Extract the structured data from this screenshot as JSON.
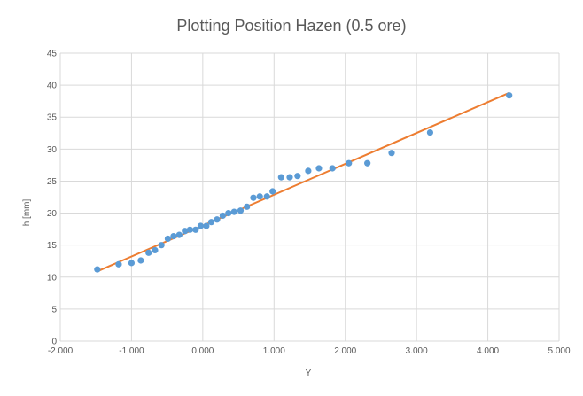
{
  "chart_data": {
    "type": "scatter",
    "title": "Plotting Position Hazen (0.5 ore)",
    "xlabel": "Y",
    "ylabel": "h [mm]",
    "xlim": [
      -2.0,
      5.0
    ],
    "ylim": [
      0,
      45
    ],
    "x_ticks": [
      "-2.000",
      "-1.000",
      "0.000",
      "1.000",
      "2.000",
      "3.000",
      "4.000",
      "5.000"
    ],
    "y_ticks": [
      "0",
      "5",
      "10",
      "15",
      "20",
      "25",
      "30",
      "35",
      "40",
      "45"
    ],
    "grid": true,
    "legend": "none",
    "colors": {
      "points": "#5b9bd5",
      "trend": "#ed7d31",
      "grid": "#d9d9d9",
      "text": "#595959"
    },
    "series": [
      {
        "kind": "scatter",
        "points": [
          [
            -1.48,
            11.2
          ],
          [
            -1.18,
            12.0
          ],
          [
            -1.0,
            12.2
          ],
          [
            -0.87,
            12.6
          ],
          [
            -0.76,
            13.8
          ],
          [
            -0.67,
            14.2
          ],
          [
            -0.58,
            15.0
          ],
          [
            -0.49,
            16.0
          ],
          [
            -0.41,
            16.4
          ],
          [
            -0.33,
            16.6
          ],
          [
            -0.25,
            17.2
          ],
          [
            -0.18,
            17.4
          ],
          [
            -0.1,
            17.4
          ],
          [
            -0.03,
            18.0
          ],
          [
            0.05,
            18.0
          ],
          [
            0.12,
            18.6
          ],
          [
            0.2,
            19.0
          ],
          [
            0.28,
            19.6
          ],
          [
            0.36,
            20.0
          ],
          [
            0.44,
            20.2
          ],
          [
            0.53,
            20.4
          ],
          [
            0.62,
            21.0
          ],
          [
            0.71,
            22.4
          ],
          [
            0.8,
            22.6
          ],
          [
            0.9,
            22.6
          ],
          [
            0.98,
            23.4
          ],
          [
            1.1,
            25.6
          ],
          [
            1.22,
            25.6
          ],
          [
            1.33,
            25.8
          ],
          [
            1.48,
            26.6
          ],
          [
            1.63,
            27.0
          ],
          [
            1.82,
            27.0
          ],
          [
            2.05,
            27.8
          ],
          [
            2.31,
            27.8
          ],
          [
            2.65,
            29.4
          ],
          [
            3.19,
            32.6
          ],
          [
            4.3,
            38.4
          ]
        ]
      },
      {
        "kind": "trendline",
        "points": [
          [
            -1.48,
            10.9
          ],
          [
            4.3,
            38.8
          ]
        ]
      }
    ]
  }
}
